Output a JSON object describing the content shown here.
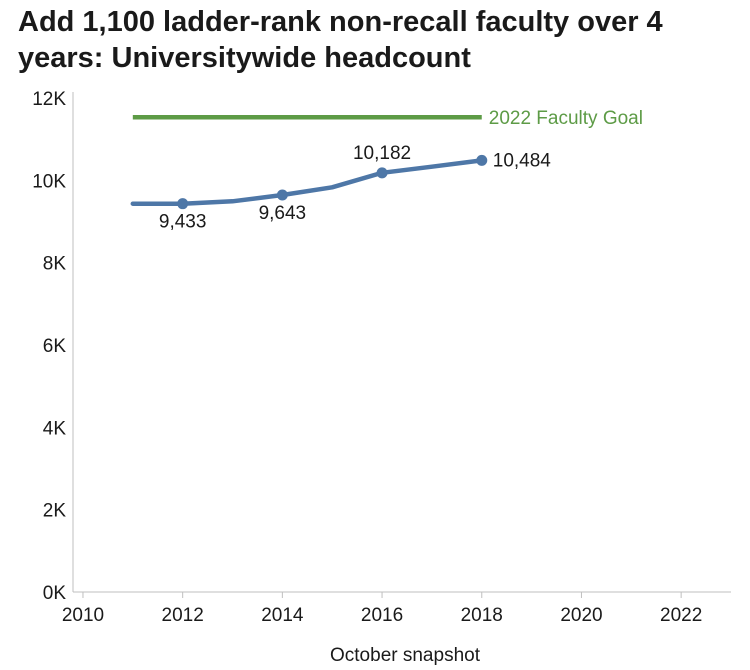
{
  "title": "Add 1,100 ladder-rank non-recall faculty over 4 years: Universitywide headcount",
  "colors": {
    "series": "#4e77a7",
    "goal": "#5d9b46",
    "axis": "#bfbfbf",
    "text": "#1a1a1a"
  },
  "chart_data": {
    "type": "line",
    "title": "Add 1,100 ladder-rank non-recall faculty over 4 years: Universitywide headcount",
    "xlabel": "October snapshot",
    "ylabel": "",
    "xlim": [
      2009.8,
      2023
    ],
    "ylim": [
      0,
      12000
    ],
    "x_ticks": [
      2010,
      2012,
      2014,
      2016,
      2018,
      2020,
      2022
    ],
    "x_tick_labels": [
      "2010",
      "2012",
      "2014",
      "2016",
      "2018",
      "2020",
      "2022"
    ],
    "y_ticks": [
      0,
      2000,
      4000,
      6000,
      8000,
      10000,
      12000
    ],
    "y_tick_labels": [
      "0K",
      "2K",
      "4K",
      "6K",
      "8K",
      "10K",
      "12K"
    ],
    "grid": false,
    "series": [
      {
        "x": [
          2011,
          2012,
          2013,
          2014,
          2015,
          2016,
          2017,
          2018
        ],
        "values": [
          9433,
          9433,
          9490,
          9643,
          9830,
          10182,
          10330,
          10484
        ],
        "markers_at": [
          2012,
          2014,
          2016,
          2018
        ],
        "data_labels": [
          {
            "x": 2012,
            "y": 9433,
            "text": "9,433",
            "position": "below"
          },
          {
            "x": 2014,
            "y": 9643,
            "text": "9,643",
            "position": "below"
          },
          {
            "x": 2016,
            "y": 10182,
            "text": "10,182",
            "position": "above"
          },
          {
            "x": 2018,
            "y": 10484,
            "text": "10,484",
            "position": "right"
          }
        ]
      }
    ],
    "reference_lines": [
      {
        "label": "2022 Faculty Goal",
        "x": [
          2011,
          2018
        ],
        "y": 11533,
        "label_position": "right"
      }
    ]
  }
}
